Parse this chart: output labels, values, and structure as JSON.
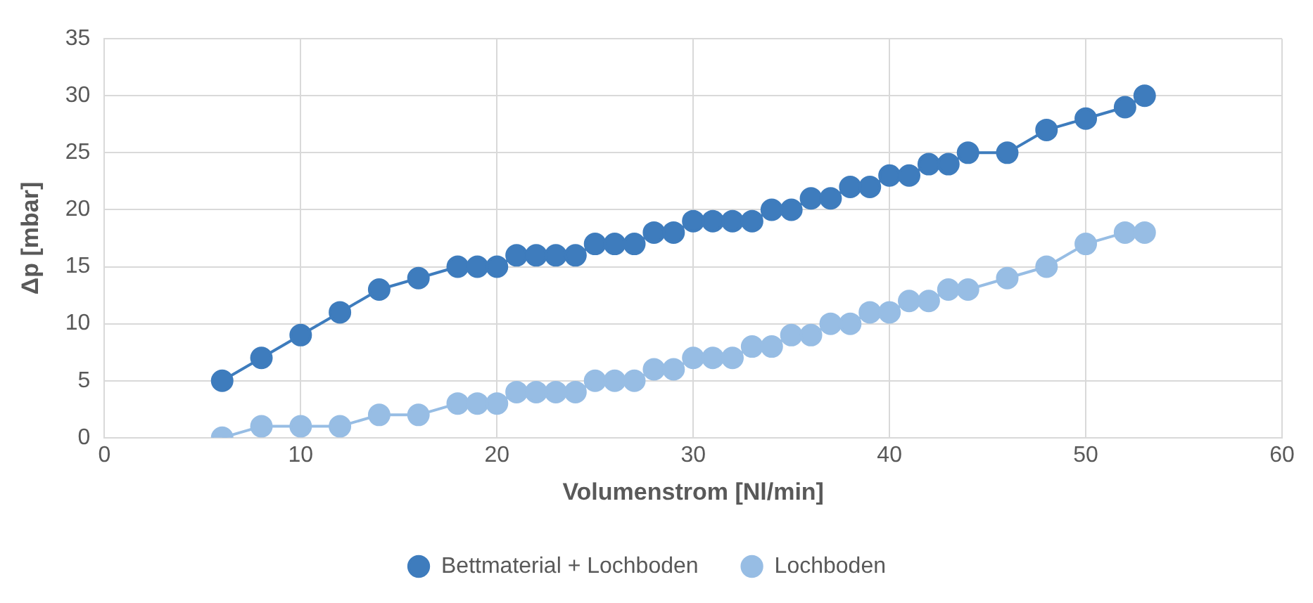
{
  "chart_data": {
    "type": "line",
    "xlabel": "Volumenstrom [Nl/min]",
    "ylabel": "Δp [mbar]",
    "x": [
      6,
      8,
      10,
      12,
      14,
      16,
      18,
      19,
      20,
      21,
      22,
      23,
      24,
      25,
      26,
      27,
      28,
      29,
      30,
      31,
      32,
      33,
      34,
      35,
      36,
      37,
      38,
      39,
      40,
      41,
      42,
      43,
      44,
      46,
      48,
      50,
      52,
      53
    ],
    "series": [
      {
        "name": "Bettmaterial + Lochboden",
        "color": "#3e7cbd",
        "values": [
          5,
          7,
          9,
          11,
          13,
          14,
          15,
          15,
          15,
          16,
          16,
          16,
          16,
          17,
          17,
          17,
          18,
          18,
          19,
          19,
          19,
          19,
          20,
          20,
          21,
          21,
          22,
          22,
          23,
          23,
          24,
          24,
          25,
          25,
          27,
          28,
          29,
          30
        ]
      },
      {
        "name": "Lochboden",
        "color": "#97bde4",
        "values": [
          0,
          1,
          1,
          1,
          2,
          2,
          3,
          3,
          3,
          4,
          4,
          4,
          4,
          5,
          5,
          5,
          6,
          6,
          7,
          7,
          7,
          8,
          8,
          9,
          9,
          10,
          10,
          11,
          11,
          12,
          12,
          13,
          13,
          14,
          15,
          17,
          18,
          18
        ]
      }
    ],
    "xlim": [
      0,
      60
    ],
    "xticks": [
      0,
      10,
      20,
      30,
      40,
      50,
      60
    ],
    "ylim": [
      0,
      35
    ],
    "yticks": [
      0,
      5,
      10,
      15,
      20,
      25,
      30,
      35
    ],
    "grid": true,
    "legend": "bottom",
    "marker": "circle",
    "line_style": "solid"
  }
}
